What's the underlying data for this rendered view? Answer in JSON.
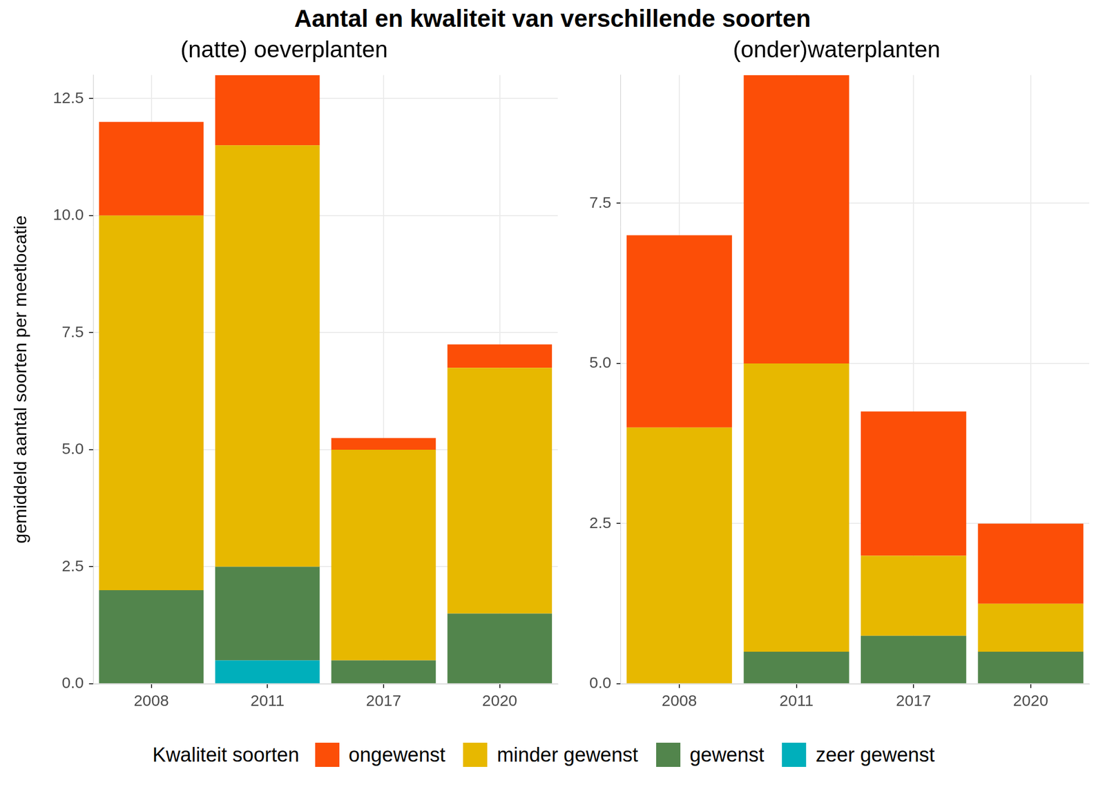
{
  "title": "Aantal en kwaliteit van verschillende soorten",
  "legend_title": "Kwaliteit soorten",
  "chart_data": [
    {
      "type": "bar",
      "title": "(natte) oeverplanten",
      "ylabel": "gemiddeld aantal soorten per meetlocatie",
      "categories": [
        "2008",
        "2011",
        "2017",
        "2020"
      ],
      "series": [
        {
          "name": "ongewenst",
          "color": "#FC4E07",
          "values": [
            2,
            1.5,
            0.25,
            0.5
          ]
        },
        {
          "name": "minder gewenst",
          "color": "#E7B800",
          "values": [
            8,
            9,
            4.5,
            5.25
          ]
        },
        {
          "name": "gewenst",
          "color": "#52854C",
          "values": [
            2,
            2,
            0.5,
            1.5
          ]
        },
        {
          "name": "zeer gewenst",
          "color": "#00AFBB",
          "values": [
            0,
            0.5,
            0,
            0
          ]
        }
      ],
      "ylim": [
        0,
        13
      ],
      "yticks": [
        {
          "value": 0,
          "label": "0.0"
        },
        2.5,
        {
          "value": 5,
          "label": "5.0"
        },
        7.5,
        {
          "value": 10,
          "label": "10.0"
        },
        12.5
      ],
      "stacked": true,
      "grid": true,
      "legend": "bottom"
    },
    {
      "type": "bar",
      "title": "(onder)waterplanten",
      "categories": [
        "2008",
        "2011",
        "2017",
        "2020"
      ],
      "series": [
        {
          "name": "ongewenst",
          "color": "#FC4E07",
          "values": [
            3,
            4.5,
            2.25,
            1.25
          ]
        },
        {
          "name": "minder gewenst",
          "color": "#E7B800",
          "values": [
            4,
            4.5,
            1.25,
            0.75
          ]
        },
        {
          "name": "gewenst",
          "color": "#52854C",
          "values": [
            0,
            0.5,
            0.75,
            0.5
          ]
        },
        {
          "name": "zeer gewenst",
          "color": "#00AFBB",
          "values": [
            0,
            0,
            0,
            0
          ]
        }
      ],
      "ylim": [
        0,
        9.5
      ],
      "yticks": [
        {
          "value": 0,
          "label": "0.0"
        },
        2.5,
        {
          "value": 5,
          "label": "5.0"
        },
        7.5
      ],
      "stacked": true,
      "grid": true,
      "legend": "bottom"
    }
  ]
}
